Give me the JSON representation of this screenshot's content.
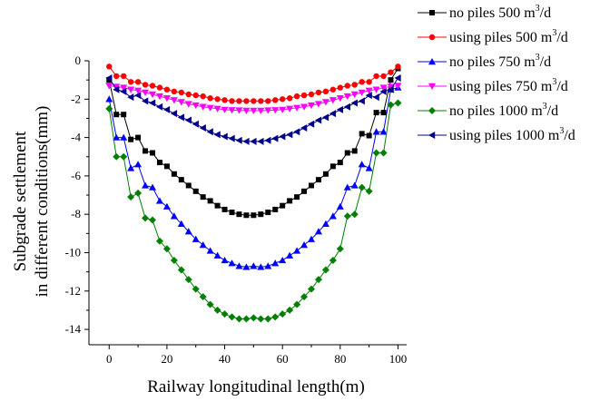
{
  "chart_data": {
    "type": "line",
    "title": "",
    "xlabel": "Railway longitudinal length(m)",
    "ylabel_lines": [
      "Subgrade settlement",
      "in different conditions(mm)"
    ],
    "xlim": [
      -7,
      103
    ],
    "ylim": [
      -14.8,
      0
    ],
    "xticks": [
      0,
      20,
      40,
      60,
      80,
      100
    ],
    "yticks": [
      0,
      -2,
      -4,
      -6,
      -8,
      -10,
      -12,
      -14
    ],
    "grid": false,
    "legend_position": "top-right",
    "x": [
      0,
      2.5,
      5,
      7.5,
      10,
      12.5,
      15,
      17.5,
      20,
      22.5,
      25,
      27.5,
      30,
      32.5,
      35,
      37.5,
      40,
      42.5,
      45,
      47.5,
      50,
      52.5,
      55,
      57.5,
      60,
      62.5,
      65,
      67.5,
      70,
      72.5,
      75,
      77.5,
      80,
      82.5,
      85,
      87.5,
      90,
      92.5,
      95,
      97.5,
      100
    ],
    "series": [
      {
        "name": "no piles    500 m³/d",
        "color": "#000000",
        "marker": "square",
        "values": [
          -1.0,
          -2.8,
          -2.8,
          -4.1,
          -4.0,
          -4.7,
          -4.8,
          -5.3,
          -5.5,
          -5.9,
          -6.2,
          -6.5,
          -6.8,
          -7.1,
          -7.3,
          -7.55,
          -7.75,
          -7.9,
          -8.0,
          -8.05,
          -8.05,
          -8.0,
          -7.9,
          -7.75,
          -7.55,
          -7.3,
          -7.1,
          -6.8,
          -6.5,
          -6.2,
          -5.9,
          -5.5,
          -5.3,
          -4.8,
          -4.7,
          -3.8,
          -3.9,
          -2.7,
          -2.7,
          -1.0,
          -0.4
        ]
      },
      {
        "name": "using piles 500 m³/d",
        "color": "#ff0000",
        "marker": "circle",
        "values": [
          -0.3,
          -0.8,
          -0.8,
          -1.1,
          -1.1,
          -1.25,
          -1.3,
          -1.4,
          -1.5,
          -1.6,
          -1.65,
          -1.75,
          -1.8,
          -1.85,
          -1.95,
          -2.0,
          -2.05,
          -2.1,
          -2.1,
          -2.1,
          -2.1,
          -2.1,
          -2.1,
          -2.05,
          -2.0,
          -1.95,
          -1.85,
          -1.8,
          -1.75,
          -1.65,
          -1.6,
          -1.5,
          -1.4,
          -1.3,
          -1.25,
          -1.1,
          -1.1,
          -0.8,
          -0.8,
          -0.6,
          -0.3
        ]
      },
      {
        "name": "no piles    750 m³/d",
        "color": "#0000ff",
        "marker": "triangle-up",
        "values": [
          -2.0,
          -4.0,
          -4.0,
          -5.6,
          -5.4,
          -6.5,
          -6.6,
          -7.3,
          -7.6,
          -8.1,
          -8.5,
          -8.9,
          -9.3,
          -9.6,
          -9.9,
          -10.15,
          -10.4,
          -10.55,
          -10.7,
          -10.75,
          -10.7,
          -10.75,
          -10.7,
          -10.55,
          -10.4,
          -10.15,
          -9.9,
          -9.6,
          -9.3,
          -8.9,
          -8.5,
          -8.1,
          -7.6,
          -6.6,
          -6.5,
          -5.4,
          -5.6,
          -3.7,
          -3.7,
          -1.5,
          -1.4
        ]
      },
      {
        "name": "using piles 750 m³/d",
        "color": "#ff00ff",
        "marker": "triangle-down",
        "values": [
          -1.3,
          -1.35,
          -1.4,
          -1.5,
          -1.55,
          -1.65,
          -1.75,
          -1.85,
          -1.95,
          -2.05,
          -2.15,
          -2.25,
          -2.32,
          -2.4,
          -2.45,
          -2.5,
          -2.55,
          -2.57,
          -2.58,
          -2.6,
          -2.6,
          -2.6,
          -2.58,
          -2.57,
          -2.55,
          -2.5,
          -2.45,
          -2.4,
          -2.32,
          -2.25,
          -2.15,
          -2.05,
          -1.95,
          -1.85,
          -1.75,
          -1.65,
          -1.55,
          -1.5,
          -1.4,
          -1.35,
          -1.3
        ]
      },
      {
        "name": "no piles    1000 m³/d",
        "color": "#008000",
        "marker": "diamond",
        "values": [
          -2.5,
          -5.0,
          -5.0,
          -7.1,
          -6.9,
          -8.2,
          -8.3,
          -9.4,
          -9.8,
          -10.4,
          -10.9,
          -11.4,
          -11.9,
          -12.3,
          -12.7,
          -13.0,
          -13.2,
          -13.35,
          -13.45,
          -13.45,
          -13.4,
          -13.45,
          -13.45,
          -13.35,
          -13.2,
          -13.0,
          -12.7,
          -12.3,
          -11.9,
          -11.4,
          -10.9,
          -10.4,
          -9.8,
          -8.1,
          -8.0,
          -6.6,
          -6.8,
          -4.8,
          -4.8,
          -2.3,
          -2.2
        ]
      },
      {
        "name": "using piles 1000 m³/d",
        "color": "#00008b",
        "marker": "triangle-left",
        "values": [
          -0.9,
          -1.5,
          -1.6,
          -1.9,
          -1.8,
          -2.1,
          -2.2,
          -2.4,
          -2.55,
          -2.75,
          -2.95,
          -3.1,
          -3.3,
          -3.5,
          -3.7,
          -3.85,
          -3.95,
          -4.05,
          -4.15,
          -4.2,
          -4.2,
          -4.2,
          -4.15,
          -4.05,
          -3.95,
          -3.85,
          -3.7,
          -3.5,
          -3.3,
          -3.1,
          -2.95,
          -2.75,
          -2.55,
          -2.4,
          -2.2,
          -2.1,
          -1.8,
          -1.9,
          -1.6,
          -1.5,
          -0.9
        ]
      }
    ]
  },
  "legend": [
    {
      "prefix": "no piles    ",
      "value": "500 m",
      "sup": "3",
      "suffix": "/d"
    },
    {
      "prefix": "using piles ",
      "value": "500 m",
      "sup": "3",
      "suffix": "/d"
    },
    {
      "prefix": "no piles    ",
      "value": "750 m",
      "sup": "3",
      "suffix": "/d"
    },
    {
      "prefix": "using piles ",
      "value": "750 m",
      "sup": "3",
      "suffix": "/d"
    },
    {
      "prefix": "no piles    ",
      "value": "1000 m",
      "sup": "3",
      "suffix": "/d"
    },
    {
      "prefix": "using piles ",
      "value": "1000 m",
      "sup": "3",
      "suffix": "/d"
    }
  ]
}
